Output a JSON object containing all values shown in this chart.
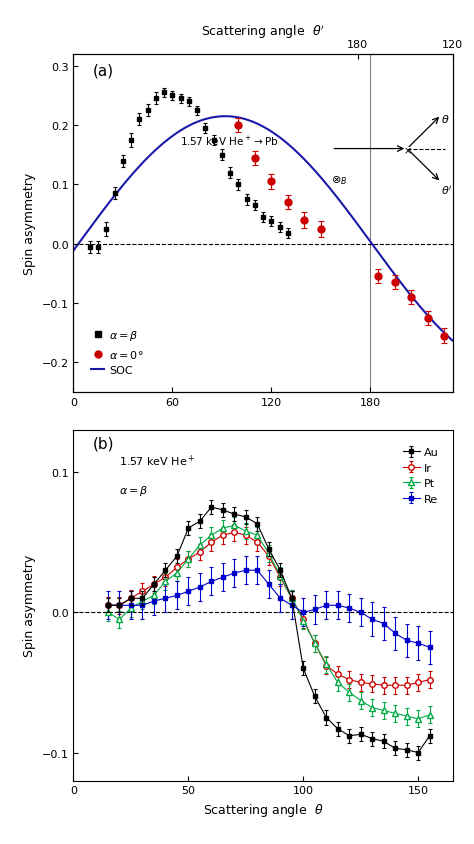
{
  "panel_a": {
    "black_x": [
      10,
      15,
      20,
      25,
      30,
      35,
      40,
      45,
      50,
      55,
      60,
      65,
      70,
      75,
      80,
      85,
      90,
      95,
      100,
      105,
      110,
      115,
      120,
      125,
      130
    ],
    "black_y": [
      -0.005,
      -0.005,
      0.025,
      0.085,
      0.14,
      0.175,
      0.21,
      0.225,
      0.245,
      0.255,
      0.25,
      0.245,
      0.24,
      0.225,
      0.195,
      0.175,
      0.15,
      0.12,
      0.1,
      0.075,
      0.065,
      0.045,
      0.038,
      0.028,
      0.018
    ],
    "black_yerr": [
      0.01,
      0.01,
      0.012,
      0.01,
      0.01,
      0.012,
      0.01,
      0.01,
      0.01,
      0.008,
      0.008,
      0.008,
      0.008,
      0.008,
      0.009,
      0.009,
      0.009,
      0.009,
      0.009,
      0.009,
      0.009,
      0.009,
      0.009,
      0.009,
      0.009
    ],
    "red_x": [
      100,
      110,
      120,
      130,
      140,
      150,
      185,
      195,
      205,
      215,
      225
    ],
    "red_y": [
      0.2,
      0.145,
      0.105,
      0.07,
      0.04,
      0.025,
      -0.055,
      -0.065,
      -0.09,
      -0.125,
      -0.155
    ],
    "red_yerr": [
      0.012,
      0.012,
      0.012,
      0.012,
      0.013,
      0.013,
      0.012,
      0.012,
      0.012,
      0.012,
      0.012
    ],
    "ylim": [
      -0.25,
      0.32
    ],
    "yticks": [
      -0.2,
      -0.1,
      0.0,
      0.1,
      0.2,
      0.3
    ],
    "xlim": [
      0,
      230
    ],
    "xticks": [
      0,
      60,
      120,
      180
    ],
    "vline_x": 180
  },
  "panel_b": {
    "au_x": [
      15,
      20,
      25,
      30,
      35,
      40,
      45,
      50,
      55,
      60,
      65,
      70,
      75,
      80,
      85,
      90,
      95,
      100,
      105,
      110,
      115,
      120,
      125,
      130,
      135,
      140,
      145,
      150,
      155
    ],
    "au_y": [
      0.005,
      0.005,
      0.01,
      0.01,
      0.02,
      0.03,
      0.04,
      0.06,
      0.065,
      0.075,
      0.073,
      0.07,
      0.068,
      0.063,
      0.045,
      0.03,
      0.01,
      -0.04,
      -0.06,
      -0.075,
      -0.083,
      -0.088,
      -0.087,
      -0.09,
      -0.092,
      -0.097,
      -0.098,
      -0.1,
      -0.088
    ],
    "au_yerr": [
      0.005,
      0.005,
      0.005,
      0.005,
      0.005,
      0.005,
      0.005,
      0.005,
      0.005,
      0.005,
      0.005,
      0.005,
      0.005,
      0.005,
      0.005,
      0.005,
      0.005,
      0.005,
      0.005,
      0.005,
      0.005,
      0.005,
      0.005,
      0.005,
      0.005,
      0.005,
      0.005,
      0.005,
      0.005
    ],
    "ir_x": [
      15,
      20,
      25,
      30,
      35,
      40,
      45,
      50,
      55,
      60,
      65,
      70,
      75,
      80,
      85,
      90,
      95,
      100,
      105,
      110,
      115,
      120,
      125,
      130,
      135,
      140,
      145,
      150,
      155
    ],
    "ir_y": [
      0.005,
      0.005,
      0.01,
      0.015,
      0.02,
      0.025,
      0.032,
      0.038,
      0.043,
      0.05,
      0.055,
      0.057,
      0.055,
      0.05,
      0.04,
      0.025,
      0.01,
      -0.005,
      -0.022,
      -0.038,
      -0.044,
      -0.048,
      -0.05,
      -0.051,
      -0.052,
      -0.052,
      -0.052,
      -0.05,
      -0.048
    ],
    "ir_yerr": [
      0.006,
      0.006,
      0.006,
      0.006,
      0.006,
      0.006,
      0.006,
      0.006,
      0.006,
      0.006,
      0.006,
      0.006,
      0.006,
      0.006,
      0.006,
      0.006,
      0.006,
      0.006,
      0.006,
      0.006,
      0.006,
      0.006,
      0.006,
      0.006,
      0.006,
      0.006,
      0.006,
      0.006,
      0.006
    ],
    "pt_x": [
      15,
      20,
      25,
      30,
      35,
      40,
      45,
      50,
      55,
      60,
      65,
      70,
      75,
      80,
      85,
      90,
      95,
      100,
      105,
      110,
      115,
      120,
      125,
      130,
      135,
      140,
      145,
      150,
      155
    ],
    "pt_y": [
      0.0,
      -0.005,
      0.003,
      0.008,
      0.012,
      0.022,
      0.028,
      0.038,
      0.048,
      0.055,
      0.06,
      0.062,
      0.058,
      0.055,
      0.042,
      0.026,
      0.01,
      -0.006,
      -0.022,
      -0.037,
      -0.05,
      -0.057,
      -0.063,
      -0.068,
      -0.07,
      -0.072,
      -0.074,
      -0.076,
      -0.073
    ],
    "pt_yerr": [
      0.006,
      0.006,
      0.006,
      0.006,
      0.006,
      0.006,
      0.006,
      0.006,
      0.006,
      0.006,
      0.006,
      0.006,
      0.006,
      0.006,
      0.006,
      0.006,
      0.006,
      0.006,
      0.006,
      0.006,
      0.006,
      0.006,
      0.006,
      0.006,
      0.006,
      0.006,
      0.006,
      0.006,
      0.006
    ],
    "re_x": [
      15,
      20,
      25,
      30,
      35,
      40,
      45,
      50,
      55,
      60,
      65,
      70,
      75,
      80,
      85,
      90,
      95,
      100,
      105,
      110,
      115,
      120,
      125,
      130,
      135,
      140,
      145,
      150,
      155
    ],
    "re_y": [
      0.005,
      0.005,
      0.005,
      0.005,
      0.008,
      0.01,
      0.012,
      0.015,
      0.018,
      0.022,
      0.025,
      0.028,
      0.03,
      0.03,
      0.02,
      0.01,
      0.005,
      0.0,
      0.002,
      0.005,
      0.005,
      0.003,
      0.0,
      -0.005,
      -0.008,
      -0.015,
      -0.02,
      -0.022,
      -0.025
    ],
    "re_yerr": [
      0.01,
      0.01,
      0.01,
      0.01,
      0.01,
      0.01,
      0.01,
      0.01,
      0.01,
      0.01,
      0.01,
      0.01,
      0.01,
      0.01,
      0.01,
      0.01,
      0.01,
      0.01,
      0.01,
      0.01,
      0.01,
      0.01,
      0.01,
      0.012,
      0.012,
      0.012,
      0.012,
      0.012,
      0.012
    ],
    "ylim": [
      -0.12,
      0.13
    ],
    "yticks": [
      -0.1,
      0.0,
      0.1
    ],
    "xlim": [
      0,
      165
    ],
    "xticks": [
      0,
      50,
      100,
      150
    ]
  },
  "soc_amplitude": 0.215,
  "soc_phase_shift": 3,
  "soc_period": 178,
  "colors": {
    "black": "#000000",
    "red": "#cc0000",
    "blue": "#1a1aaa",
    "green": "#00aa44",
    "dark_blue": "#0000cc"
  }
}
